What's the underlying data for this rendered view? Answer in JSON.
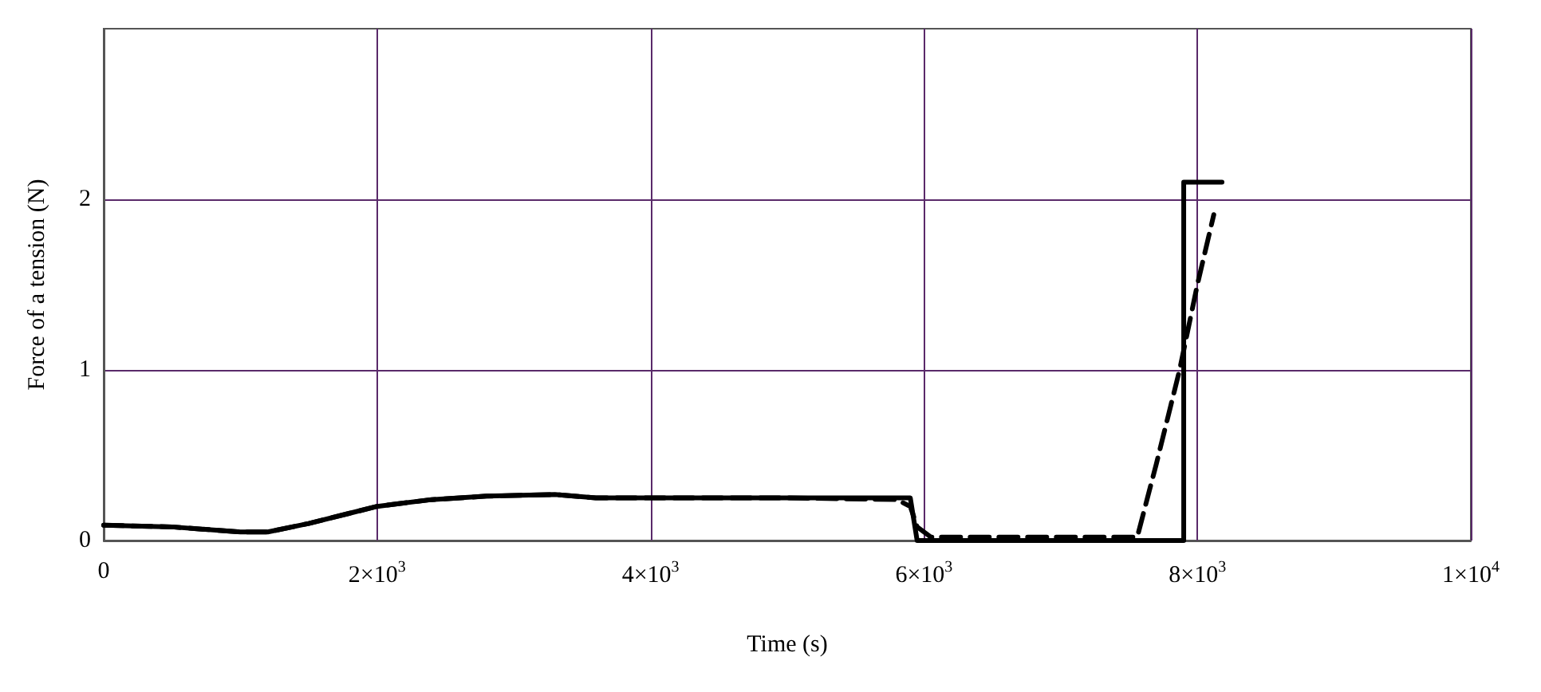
{
  "chart_data": {
    "type": "line",
    "xlabel": "Time (s)",
    "ylabel": "Force of a tension (N)",
    "xlim": [
      0,
      10000
    ],
    "ylim": [
      0,
      3
    ],
    "xticks": [
      0,
      {
        "value": 2000,
        "label": "2×10$^{3}$"
      },
      {
        "value": 4000,
        "label": "4×10$^{3}$"
      },
      {
        "value": 6000,
        "label": "6×10$^{3}$"
      },
      {
        "value": 8000,
        "label": "8×10$^{3}$"
      },
      {
        "value": 10000,
        "label": "1×10$^{4}$"
      }
    ],
    "yticks": [
      0,
      1,
      2
    ],
    "grid": true,
    "marker": "none",
    "series": [
      {
        "color": "#000000",
        "line_style": "solid",
        "x": [
          0,
          500,
          1000,
          1200,
          1500,
          1800,
          2000,
          2400,
          2800,
          3300,
          3600,
          4000,
          5000,
          5900,
          5950,
          7900,
          7900,
          8180
        ],
        "values": [
          0.09,
          0.08,
          0.05,
          0.05,
          0.1,
          0.16,
          0.2,
          0.24,
          0.26,
          0.27,
          0.25,
          0.25,
          0.25,
          0.25,
          0,
          0,
          2.1,
          2.1
        ]
      },
      {
        "color": "#000000",
        "line_style": "dashed",
        "x": [
          0,
          500,
          1000,
          1200,
          1500,
          1800,
          2000,
          2400,
          2800,
          3300,
          3600,
          4000,
          5000,
          5800,
          5900,
          5950,
          6050,
          7000,
          7560,
          7700,
          7870,
          8000,
          8120
        ],
        "values": [
          0.09,
          0.08,
          0.05,
          0.05,
          0.1,
          0.16,
          0.2,
          0.24,
          0.26,
          0.27,
          0.25,
          0.25,
          0.25,
          0.24,
          0.2,
          0.08,
          0.02,
          0.02,
          0.02,
          0.45,
          1.0,
          1.5,
          1.91
        ]
      }
    ]
  }
}
